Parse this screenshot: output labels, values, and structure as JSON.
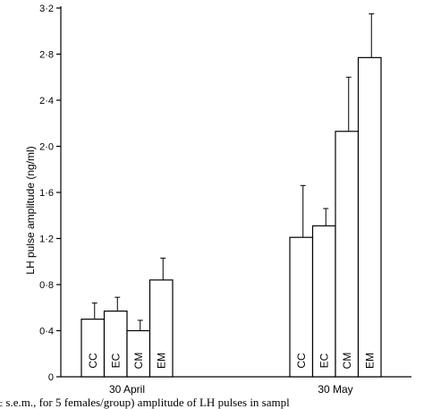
{
  "chart_data": {
    "type": "bar",
    "ylabel": "LH pulse amplitude (ng/ml)",
    "ylim": [
      0,
      3.2
    ],
    "yticks": [
      "0",
      "0·4",
      "0·8",
      "1·2",
      "1·6",
      "2·0",
      "2·4",
      "2·8",
      "3·2"
    ],
    "groups": [
      "30 April",
      "30 May"
    ],
    "series": [
      {
        "name": "CC",
        "values": [
          0.5,
          1.21
        ],
        "errors": [
          0.14,
          0.45
        ]
      },
      {
        "name": "EC",
        "values": [
          0.57,
          1.31
        ],
        "errors": [
          0.12,
          0.15
        ]
      },
      {
        "name": "CM",
        "values": [
          0.4,
          2.13
        ],
        "errors": [
          0.09,
          0.47
        ]
      },
      {
        "name": "EM",
        "values": [
          0.84,
          2.77
        ],
        "errors": [
          0.19,
          0.38
        ]
      }
    ],
    "grid": false,
    "legend": "none"
  },
  "caption": "± s.e.m., for 5 females/group) amplitude of LH pulses in sampl"
}
